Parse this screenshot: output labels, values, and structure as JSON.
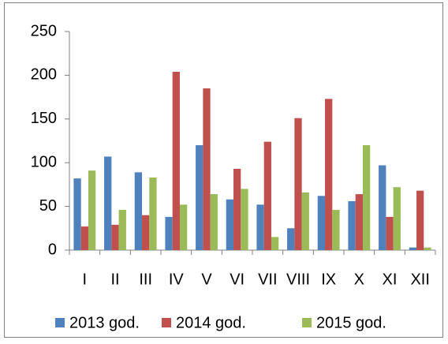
{
  "chart_data": {
    "type": "bar",
    "categories": [
      "I",
      "II",
      "III",
      "IV",
      "V",
      "VI",
      "VII",
      "VIII",
      "IX",
      "X",
      "XI",
      "XII"
    ],
    "series": [
      {
        "name": "2013 god.",
        "color": "#4f81bd",
        "values": [
          82,
          107,
          89,
          38,
          120,
          58,
          52,
          25,
          62,
          56,
          97,
          3
        ]
      },
      {
        "name": "2014 god.",
        "color": "#c0504d",
        "values": [
          27,
          29,
          40,
          204,
          185,
          93,
          124,
          151,
          173,
          64,
          38,
          68
        ]
      },
      {
        "name": "2015 god.",
        "color": "#9bbb59",
        "values": [
          91,
          46,
          83,
          52,
          64,
          70,
          15,
          66,
          46,
          120,
          72,
          3
        ]
      }
    ],
    "ylim": [
      0,
      250
    ],
    "yticks": [
      0,
      50,
      100,
      150,
      200,
      250
    ],
    "grid": false,
    "legend": "bottom"
  }
}
